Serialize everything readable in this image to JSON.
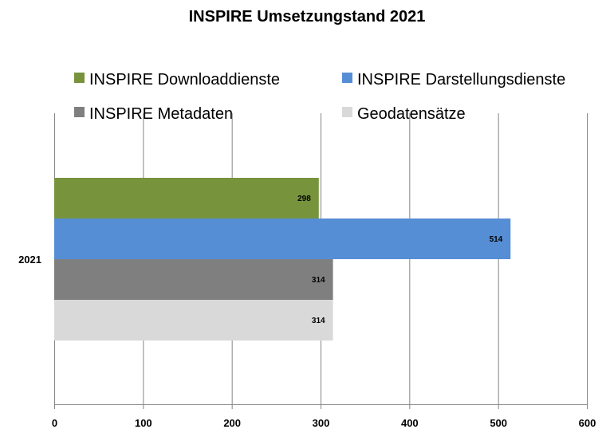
{
  "chart_data": {
    "type": "bar",
    "orientation": "horizontal",
    "title": "INSPIRE Umsetzungstand 2021",
    "categories": [
      "2021"
    ],
    "series": [
      {
        "name": "INSPIRE Downloaddienste",
        "values": [
          298
        ],
        "color": "#77933C"
      },
      {
        "name": "INSPIRE Darstellungsdienste",
        "values": [
          514
        ],
        "color": "#558ED5"
      },
      {
        "name": "INSPIRE Metadaten",
        "values": [
          314
        ],
        "color": "#7F7F7F"
      },
      {
        "name": "Geodatensätze",
        "values": [
          314
        ],
        "color": "#D9D9D9"
      }
    ],
    "xlim": [
      0,
      600
    ],
    "x_ticks": [
      "0",
      "100",
      "200",
      "300",
      "400",
      "500",
      "600"
    ],
    "grid": true,
    "legend_position": "top",
    "data_labels": true
  }
}
